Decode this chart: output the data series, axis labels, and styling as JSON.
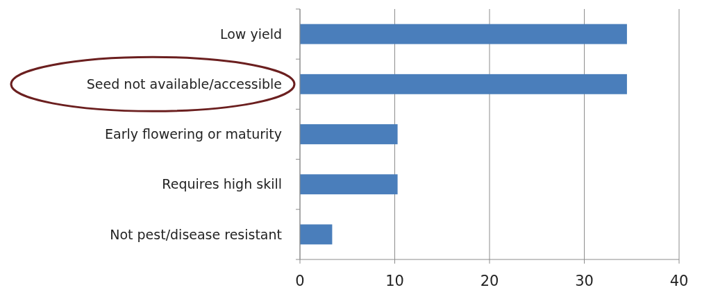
{
  "chart_data": {
    "type": "bar",
    "orientation": "horizontal",
    "categories": [
      "Low yield",
      "Seed not available/accessible",
      "Early flowering or maturity",
      "Requires high skill",
      "Not pest/disease resistant"
    ],
    "values": [
      34.5,
      34.5,
      10.3,
      10.3,
      3.4
    ],
    "color": "#4a7ebb",
    "xlim": [
      0,
      40
    ],
    "xticks": [
      0,
      10,
      20,
      30,
      40
    ],
    "grid": "x"
  }
}
